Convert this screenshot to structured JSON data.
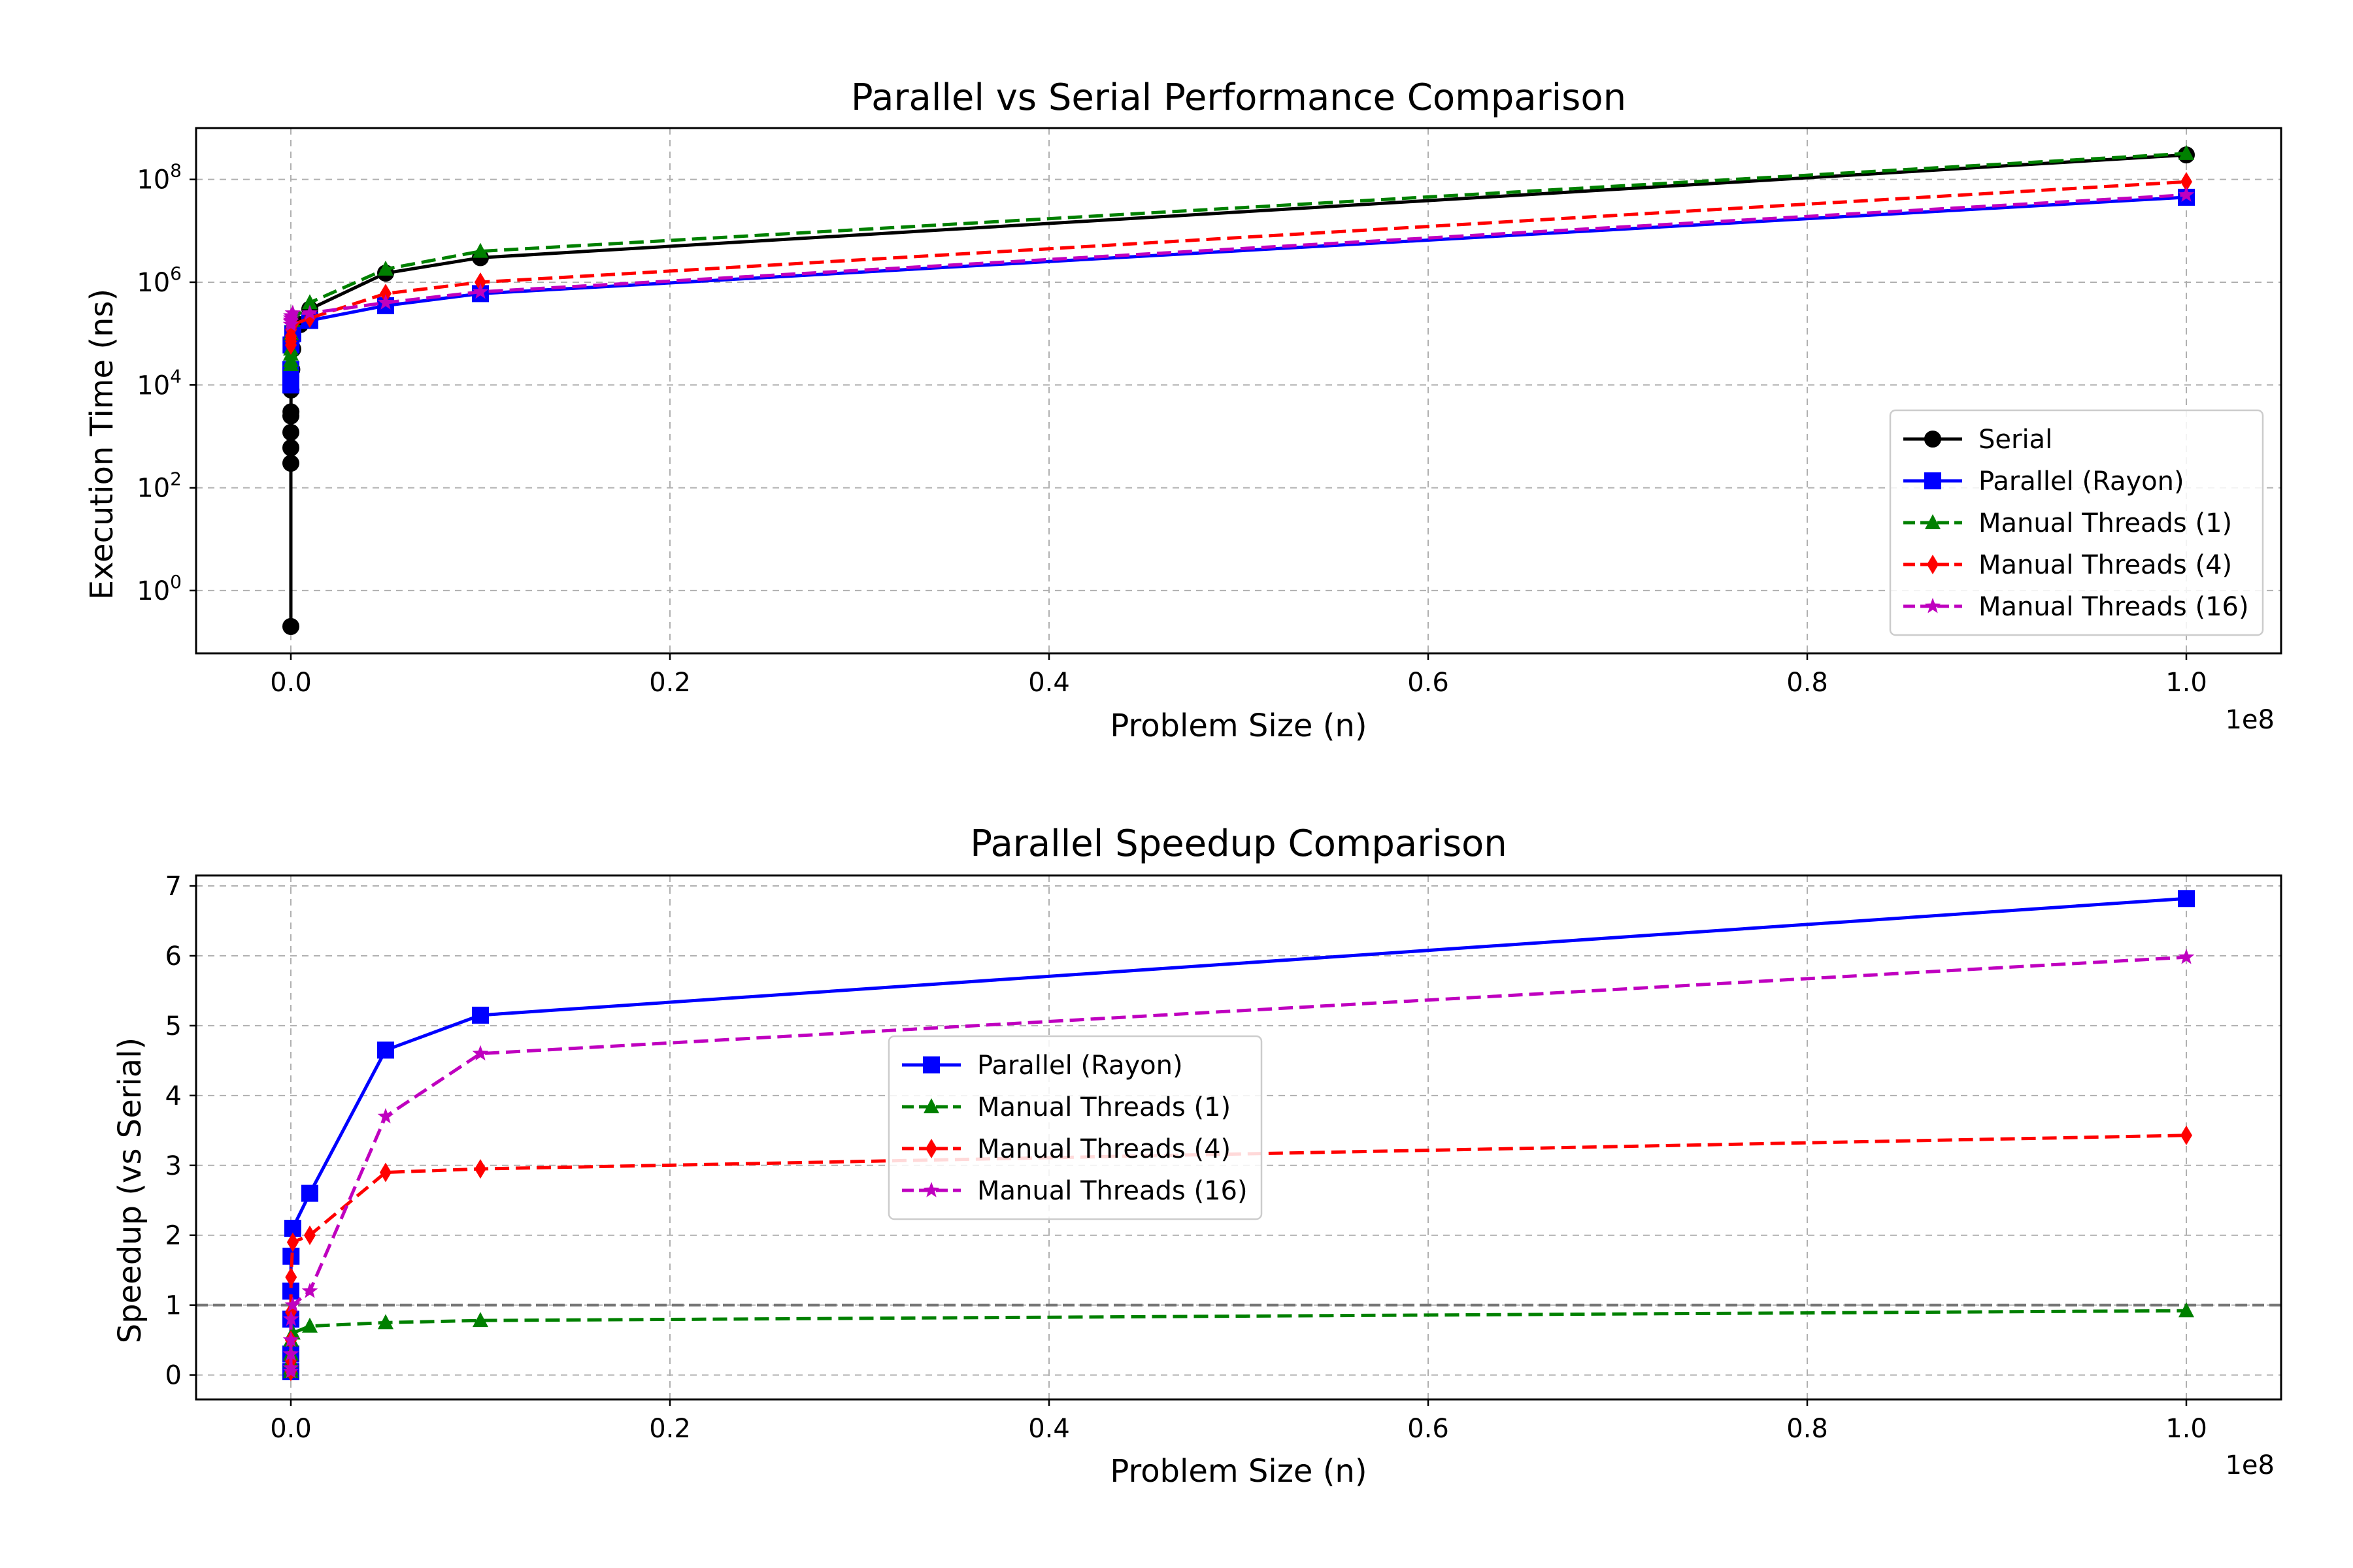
{
  "chart_data": [
    {
      "type": "line",
      "title": "Parallel vs Serial Performance Comparison",
      "xlabel": "Problem Size (n)",
      "ylabel": "Execution Time (ns)",
      "x_offset_label": "1e8",
      "xscale": "linear",
      "yscale": "log",
      "xlim": [
        -5000000,
        105000000
      ],
      "ylim": [
        0.06,
        1000000000
      ],
      "x_ticks": [
        0,
        20000000,
        40000000,
        60000000,
        80000000,
        100000000
      ],
      "x_tick_labels": [
        "0.0",
        "0.2",
        "0.4",
        "0.6",
        "0.8",
        "1.0"
      ],
      "y_ticks": [
        1,
        100,
        10000,
        1000000,
        100000000
      ],
      "y_tick_labels": [
        {
          "base": "10",
          "exp": "0"
        },
        {
          "base": "10",
          "exp": "2"
        },
        {
          "base": "10",
          "exp": "4"
        },
        {
          "base": "10",
          "exp": "6"
        },
        {
          "base": "10",
          "exp": "8"
        }
      ],
      "grid": true,
      "legend_position": "lower right",
      "series": [
        {
          "name": "Serial",
          "color": "#000000",
          "dash": "solid",
          "marker": "circle",
          "x": [
            1,
            10,
            100,
            500,
            1000,
            5000,
            10000,
            50000,
            100000,
            500000,
            1000000,
            5000000,
            10000000,
            100000000
          ],
          "y": [
            0.2,
            300,
            600,
            1200,
            2500,
            3000,
            8000,
            20000,
            50000,
            150000,
            300000,
            1500000,
            3000000,
            300000000
          ]
        },
        {
          "name": "Parallel (Rayon)",
          "color": "#0000ff",
          "dash": "solid",
          "marker": "square",
          "x": [
            1,
            10,
            100,
            1000,
            10000,
            100000,
            1000000,
            5000000,
            10000000,
            100000000
          ],
          "y": [
            10000,
            12000,
            15000,
            20000,
            60000,
            100000,
            180000,
            350000,
            600000,
            45000000
          ]
        },
        {
          "name": "Manual Threads (1)",
          "color": "#008000",
          "dash": "dashed",
          "marker": "triangle",
          "x": [
            1,
            10,
            100,
            1000,
            10000,
            100000,
            1000000,
            5000000,
            10000000,
            100000000
          ],
          "y": [
            25000,
            30000,
            40000,
            50000,
            100000,
            180000,
            400000,
            1800000,
            4000000,
            320000000
          ]
        },
        {
          "name": "Manual Threads (4)",
          "color": "#ff0000",
          "dash": "dashed",
          "marker": "diamond",
          "x": [
            1,
            10,
            100,
            1000,
            10000,
            100000,
            1000000,
            5000000,
            10000000,
            100000000
          ],
          "y": [
            60000,
            70000,
            80000,
            90000,
            120000,
            150000,
            200000,
            600000,
            1000000,
            90000000
          ]
        },
        {
          "name": "Manual Threads (16)",
          "color": "#bf00bf",
          "dash": "dashed",
          "marker": "star",
          "x": [
            1,
            10,
            100,
            1000,
            10000,
            100000,
            1000000,
            5000000,
            10000000,
            100000000
          ],
          "y": [
            150000,
            170000,
            180000,
            200000,
            220000,
            250000,
            250000,
            400000,
            650000,
            50000000
          ]
        }
      ]
    },
    {
      "type": "line",
      "title": "Parallel Speedup Comparison",
      "xlabel": "Problem Size (n)",
      "ylabel": "Speedup (vs Serial)",
      "x_offset_label": "1e8",
      "xscale": "linear",
      "yscale": "linear",
      "xlim": [
        -5000000,
        105000000
      ],
      "ylim": [
        -0.35,
        7.15
      ],
      "x_ticks": [
        0,
        20000000,
        40000000,
        60000000,
        80000000,
        100000000
      ],
      "x_tick_labels": [
        "0.0",
        "0.2",
        "0.4",
        "0.6",
        "0.8",
        "1.0"
      ],
      "y_ticks": [
        0,
        1,
        2,
        3,
        4,
        5,
        6,
        7
      ],
      "y_tick_labels": [
        "0",
        "1",
        "2",
        "3",
        "4",
        "5",
        "6",
        "7"
      ],
      "reference_line": {
        "y": 1,
        "color": "#777777",
        "dash": "dashed"
      },
      "grid": true,
      "legend_position": "center",
      "series": [
        {
          "name": "Parallel (Rayon)",
          "color": "#0000ff",
          "dash": "solid",
          "marker": "square",
          "x": [
            1,
            10,
            100,
            1000,
            10000,
            100000,
            1000000,
            5000000,
            10000000,
            100000000
          ],
          "y": [
            0.05,
            0.3,
            0.8,
            1.2,
            1.7,
            2.1,
            2.6,
            4.65,
            5.15,
            6.82
          ]
        },
        {
          "name": "Manual Threads (1)",
          "color": "#008000",
          "dash": "dashed",
          "marker": "triangle",
          "x": [
            1,
            10,
            100,
            1000,
            10000,
            100000,
            1000000,
            5000000,
            10000000,
            100000000
          ],
          "y": [
            0.05,
            0.1,
            0.2,
            0.3,
            0.5,
            0.6,
            0.7,
            0.75,
            0.78,
            0.92
          ]
        },
        {
          "name": "Manual Threads (4)",
          "color": "#ff0000",
          "dash": "dashed",
          "marker": "diamond",
          "x": [
            1,
            10,
            100,
            1000,
            10000,
            100000,
            1000000,
            5000000,
            10000000,
            100000000
          ],
          "y": [
            0.05,
            0.2,
            0.5,
            0.9,
            1.4,
            1.9,
            2.0,
            2.9,
            2.95,
            3.43
          ]
        },
        {
          "name": "Manual Threads (16)",
          "color": "#bf00bf",
          "dash": "dashed",
          "marker": "star",
          "x": [
            1,
            10,
            100,
            1000,
            10000,
            100000,
            1000000,
            5000000,
            10000000,
            100000000
          ],
          "y": [
            0.05,
            0.1,
            0.3,
            0.5,
            0.8,
            1.0,
            1.2,
            3.7,
            4.6,
            5.98
          ]
        }
      ]
    }
  ]
}
